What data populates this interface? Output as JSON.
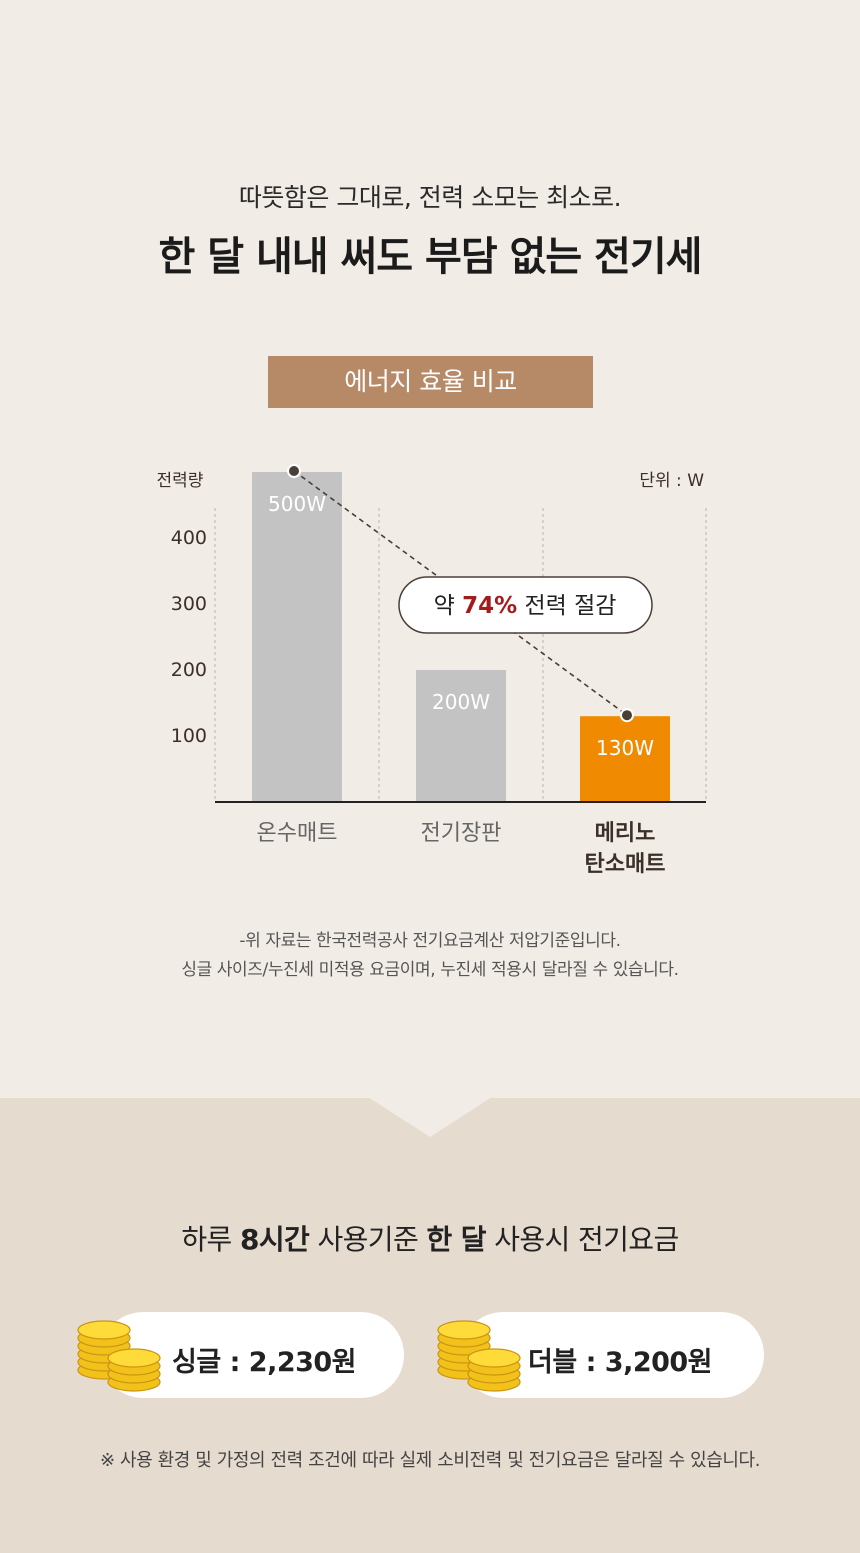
{
  "header": {
    "subtitle": "따뜻함은 그대로, 전력 소모는 최소로.",
    "title": "한 달 내내 써도 부담 없는 전기세"
  },
  "badge": "에너지 효율 비교",
  "chart_data": {
    "type": "bar",
    "categories": [
      "온수매트",
      "전기장판",
      "메리노\n탄소매트"
    ],
    "values": [
      500,
      200,
      130
    ],
    "data_labels": [
      "500W",
      "200W",
      "130W"
    ],
    "ylabel": "전력량",
    "unit_label": "단위 : W",
    "yticks": [
      100,
      200,
      300,
      400
    ],
    "ylim": [
      0,
      460
    ],
    "colors": [
      "#c3c3c3",
      "#c3c3c3",
      "#f08a00"
    ],
    "highlight_category_color": "#3b2f28",
    "annotation": {
      "prefix": "약 ",
      "emphasis": "74%",
      "suffix": " 전력 절감",
      "emphasis_color": "#a31b1b"
    },
    "grid": true
  },
  "notes": [
    "-위 자료는 한국전력공사 전기요금계산 저압기준입니다.",
    "싱글 사이즈/누진세 미적용 요금이며, 누진세 적용시 달라질 수 있습니다."
  ],
  "bottom": {
    "title_parts": [
      "하루 ",
      "8시간",
      " 사용기준 ",
      "한 달",
      " 사용시 전기요금"
    ],
    "single_label": "싱글 : 2,230원",
    "double_label": "더블 : 3,200원",
    "coin_icon": "coin-stack-icon",
    "footnote": "※ 사용 환경 및 가정의 전력 조건에 따라 실제 소비전력 및 전기요금은 달라질 수 있습니다."
  }
}
